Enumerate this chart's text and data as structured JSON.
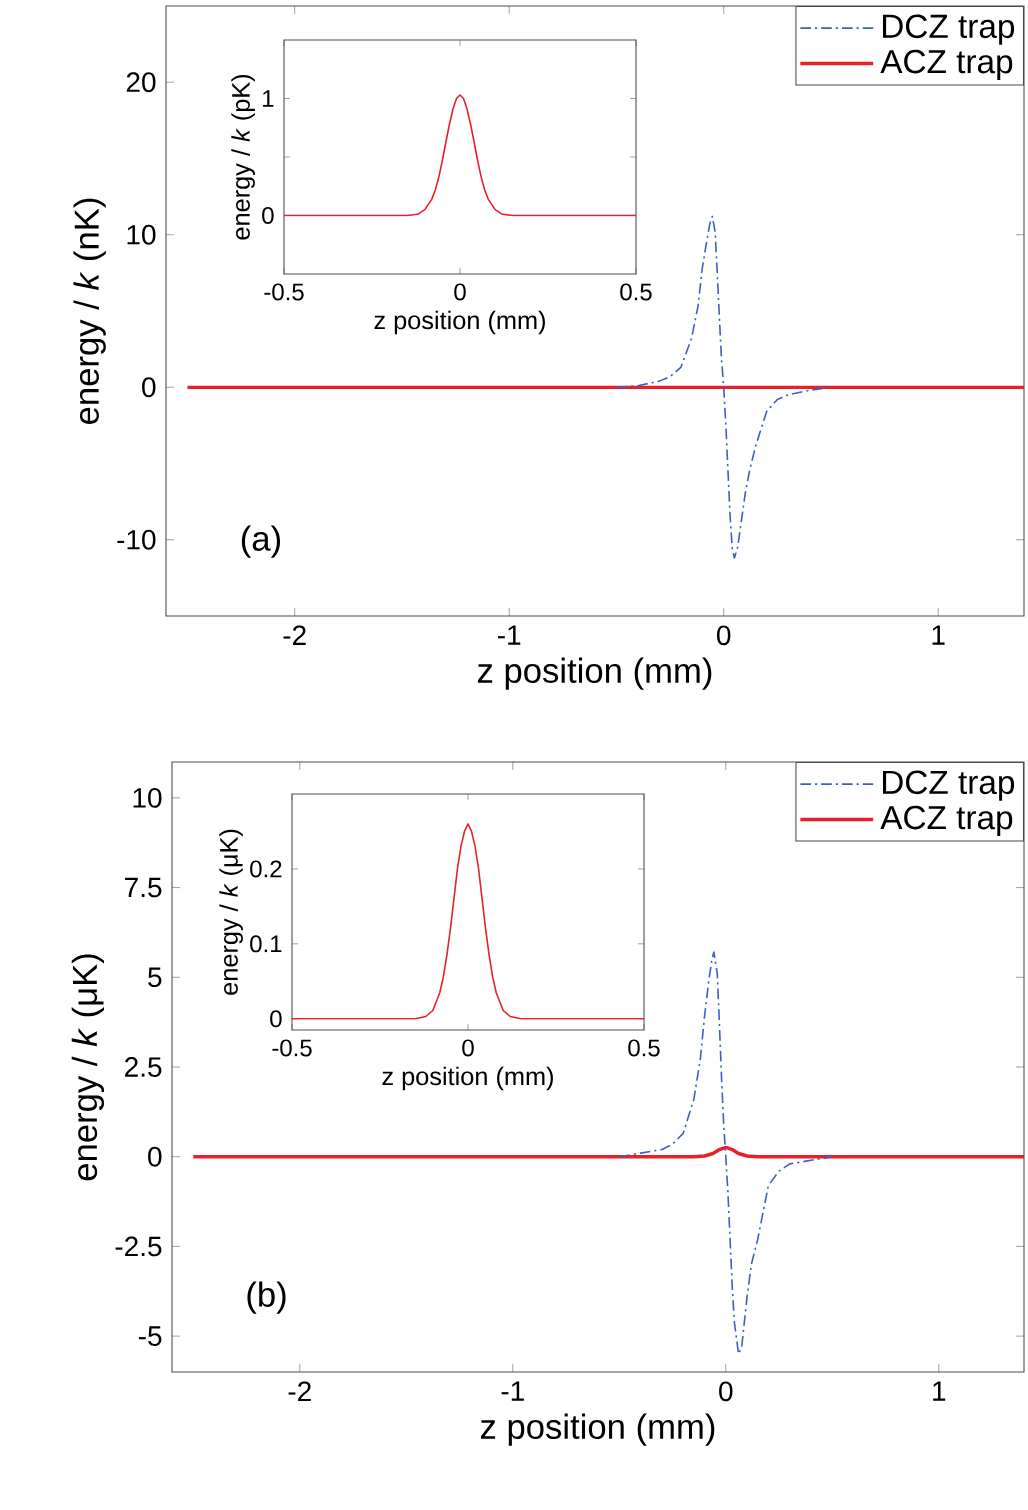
{
  "chart_data": [
    {
      "type": "line",
      "xlabel": "z position (mm)",
      "ylabel": "energy / *k* (nK)",
      "annotations": [
        "(a)"
      ],
      "legend": "top right",
      "xlim": [
        -2.6,
        1.4
      ],
      "ylim": [
        -15,
        25
      ],
      "xticks": [
        -2,
        -1,
        0,
        1
      ],
      "yticks": [
        -10,
        0,
        10,
        20
      ],
      "series": [
        {
          "name": "DCZ trap",
          "color": "#3f5fbf",
          "line_style": "dashdot",
          "x": [
            -0.5,
            -0.4,
            -0.3,
            -0.25,
            -0.2,
            -0.15,
            -0.12,
            -0.1,
            -0.08,
            -0.065,
            -0.053,
            -0.04,
            -0.03,
            -0.02,
            -0.01,
            0,
            0.01,
            0.02,
            0.03,
            0.04,
            0.05,
            0.065,
            0.08,
            0.1,
            0.12,
            0.15,
            0.2,
            0.25,
            0.3,
            0.4,
            0.5
          ],
          "values": [
            0,
            0.1,
            0.4,
            0.7,
            1.3,
            3.2,
            5.3,
            7.8,
            9.5,
            10.7,
            11.2,
            10.2,
            7.5,
            4.5,
            1.8,
            0,
            -2.5,
            -5.5,
            -8.5,
            -10.6,
            -11.2,
            -10.5,
            -9.0,
            -7.0,
            -5.5,
            -3.8,
            -1.6,
            -0.8,
            -0.5,
            -0.2,
            0
          ]
        },
        {
          "name": "ACZ trap",
          "color": "#e8202a",
          "line_style": "solid",
          "x": [
            -2.5,
            0,
            1.4
          ],
          "values": [
            0,
            0,
            0
          ]
        }
      ]
    },
    {
      "type": "line",
      "xlabel": "z position (mm)",
      "ylabel": "energy / *k* (pK)",
      "xlim": [
        -0.5,
        0.5
      ],
      "ylim": [
        -0.5,
        1.5
      ],
      "xticks": [
        -0.5,
        0,
        0.5
      ],
      "yticks": [
        0,
        {
          "value": 0.5,
          "label": null
        },
        1
      ],
      "series": [
        {
          "color": "#e8202a",
          "line_style": "solid",
          "x": [
            -0.5,
            -0.15,
            -0.12,
            -0.1,
            -0.08,
            -0.07,
            -0.06,
            -0.05,
            -0.04,
            -0.03,
            -0.02,
            -0.01,
            0,
            0.01,
            0.02,
            0.03,
            0.04,
            0.05,
            0.06,
            0.07,
            0.08,
            0.1,
            0.12,
            0.15,
            0.5
          ],
          "values": [
            0,
            0,
            0.01,
            0.05,
            0.14,
            0.22,
            0.33,
            0.47,
            0.63,
            0.78,
            0.91,
            1.0,
            1.03,
            1.0,
            0.91,
            0.78,
            0.63,
            0.47,
            0.33,
            0.22,
            0.14,
            0.05,
            0.01,
            0,
            0
          ]
        }
      ]
    },
    {
      "type": "line",
      "xlabel": "z position (mm)",
      "ylabel": "energy / *k* (μK)",
      "annotations": [
        "(b)"
      ],
      "legend": "top right",
      "xlim": [
        -2.6,
        1.4
      ],
      "ylim": [
        -6,
        11
      ],
      "xticks": [
        -2,
        -1,
        0,
        1
      ],
      "yticks": [
        -5,
        -2.5,
        0,
        2.5,
        5,
        7.5,
        10
      ],
      "series": [
        {
          "name": "DCZ trap",
          "color": "#3f5fbf",
          "line_style": "dashdot",
          "x": [
            -0.5,
            -0.4,
            -0.3,
            -0.25,
            -0.2,
            -0.15,
            -0.12,
            -0.1,
            -0.08,
            -0.065,
            -0.056,
            -0.04,
            -0.03,
            -0.02,
            -0.01,
            0,
            0.01,
            0.02,
            0.03,
            0.04,
            0.06,
            0.075,
            0.08,
            0.1,
            0.12,
            0.15,
            0.2,
            0.25,
            0.3,
            0.4,
            0.5
          ],
          "values": [
            0,
            0.1,
            0.2,
            0.35,
            0.65,
            1.6,
            2.7,
            3.9,
            4.9,
            5.5,
            5.7,
            5.1,
            3.7,
            2.2,
            0.9,
            0,
            -1.0,
            -2.3,
            -3.6,
            -4.6,
            -5.5,
            -5.3,
            -5.0,
            -3.9,
            -3.0,
            -2.3,
            -0.8,
            -0.4,
            -0.2,
            -0.1,
            0
          ]
        },
        {
          "name": "ACZ trap",
          "color": "#e8202a",
          "line_style": "solid",
          "x": [
            -2.5,
            -0.15,
            -0.1,
            -0.06,
            -0.03,
            0,
            0.03,
            0.06,
            0.1,
            0.15,
            1.4
          ],
          "values": [
            0,
            0,
            0.02,
            0.09,
            0.2,
            0.26,
            0.2,
            0.09,
            0.02,
            0,
            0
          ]
        }
      ]
    },
    {
      "type": "line",
      "xlabel": "z position (mm)",
      "ylabel": "energy / *k* (μK)",
      "xlim": [
        -0.5,
        0.5
      ],
      "ylim": [
        -0.015,
        0.3
      ],
      "xticks": [
        -0.5,
        0,
        0.5
      ],
      "yticks": [
        0,
        0.1,
        0.2
      ],
      "series": [
        {
          "color": "#e8202a",
          "line_style": "solid",
          "x": [
            -0.5,
            -0.15,
            -0.12,
            -0.1,
            -0.08,
            -0.07,
            -0.06,
            -0.05,
            -0.04,
            -0.03,
            -0.02,
            -0.01,
            0,
            0.01,
            0.02,
            0.03,
            0.04,
            0.05,
            0.06,
            0.07,
            0.08,
            0.1,
            0.12,
            0.15,
            0.5
          ],
          "values": [
            0,
            0,
            0.003,
            0.011,
            0.035,
            0.056,
            0.085,
            0.12,
            0.16,
            0.2,
            0.23,
            0.25,
            0.26,
            0.25,
            0.23,
            0.2,
            0.16,
            0.12,
            0.085,
            0.056,
            0.035,
            0.011,
            0.003,
            0,
            0
          ]
        }
      ]
    }
  ]
}
